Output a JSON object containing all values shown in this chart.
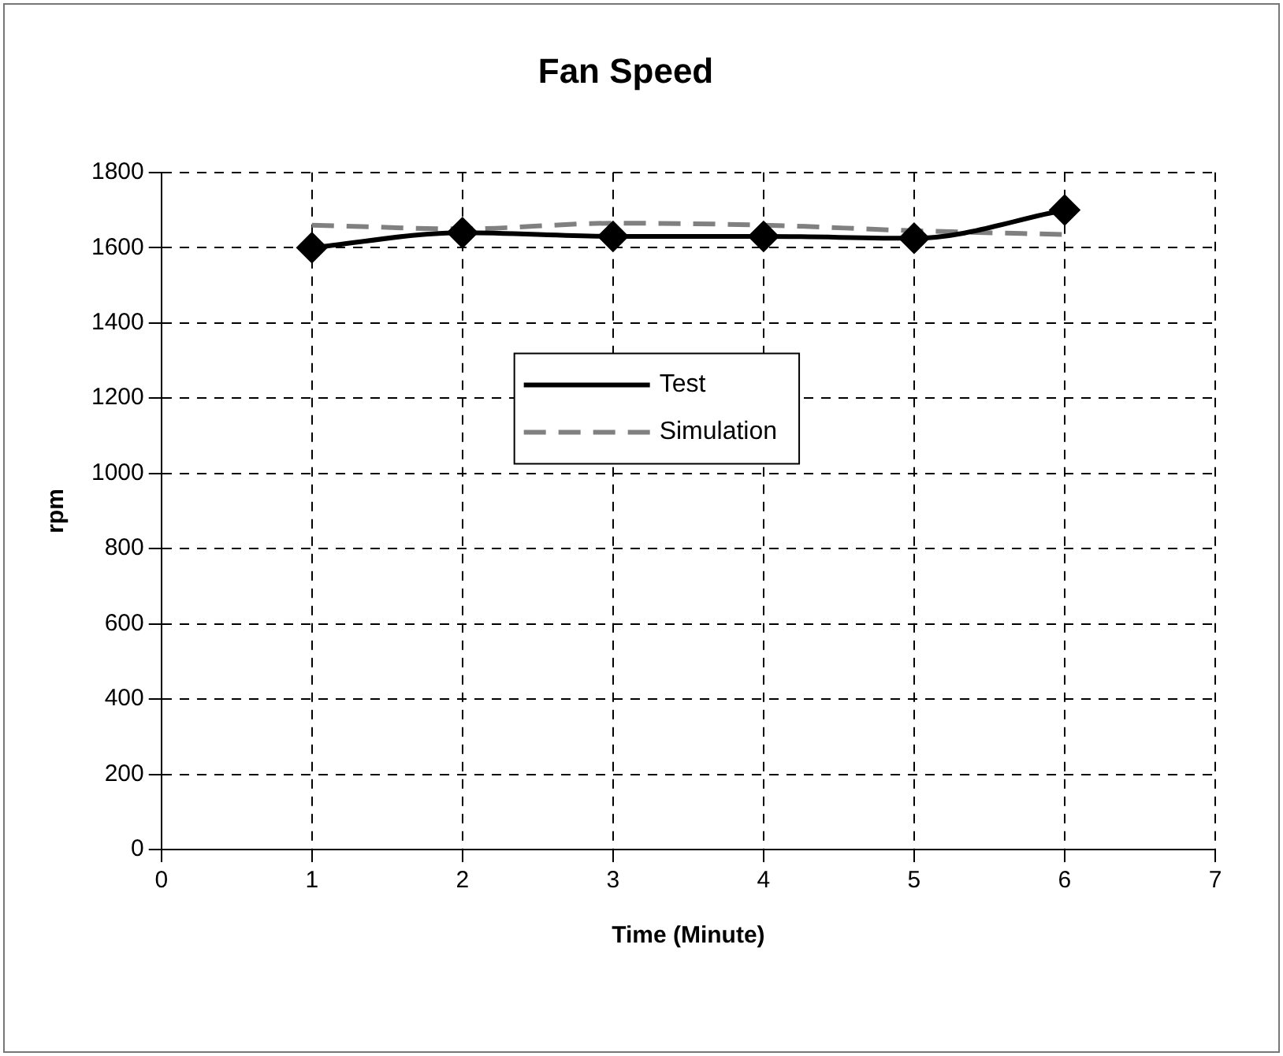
{
  "chart_data": {
    "type": "line",
    "title": "Fan Speed",
    "xlabel": "Time (Minute)",
    "ylabel": "rpm",
    "x": [
      1,
      2,
      3,
      4,
      5,
      6
    ],
    "series": [
      {
        "name": "Test",
        "color": "#000000",
        "values": [
          1600,
          1640,
          1630,
          1630,
          1625,
          1700
        ],
        "marker": "diamond",
        "line_style": "solid"
      },
      {
        "name": "Simulation",
        "color": "#808080",
        "values": [
          1660,
          1650,
          1665,
          1660,
          1645,
          1635
        ],
        "marker": "none",
        "line_style": "dashed"
      }
    ],
    "xlim": [
      0,
      7
    ],
    "xticks": [
      0,
      1,
      2,
      3,
      4,
      5,
      6,
      7
    ],
    "ylim": [
      0,
      1800
    ],
    "yticks": [
      0,
      200,
      400,
      600,
      800,
      1000,
      1200,
      1400,
      1600,
      1800
    ],
    "grid": true,
    "legend": "center"
  }
}
